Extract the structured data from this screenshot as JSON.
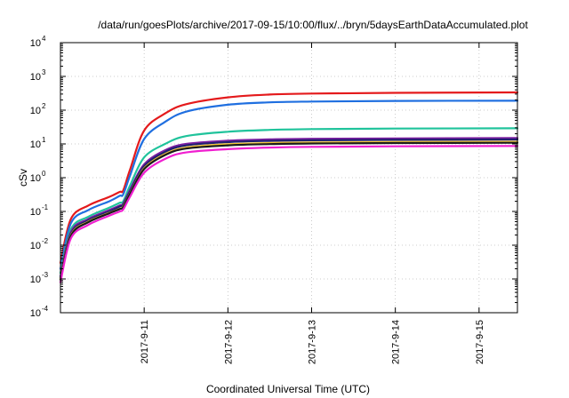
{
  "chart_data": {
    "type": "line",
    "title": "/data/run/goesPlots/archive/2017-09-15/10:00/flux/../bryn/5daysEarthDataAccumulated.plot",
    "xlabel": "Coordinated Universal Time (UTC)",
    "ylabel": "cSv",
    "yscale": "log",
    "ylim": [
      0.0001,
      10000
    ],
    "xlim": [
      "2017-09-10 00:00",
      "2017-09-15 11:00"
    ],
    "x_ticks": [
      "2017-9-11",
      "2017-9-12",
      "2017-9-13",
      "2017-9-14",
      "2017-9-15"
    ],
    "y_ticks": [
      {
        "value": 0.0001,
        "base": "10",
        "exp": "-4"
      },
      {
        "value": 0.001,
        "base": "10",
        "exp": "-3"
      },
      {
        "value": 0.01,
        "base": "10",
        "exp": "-2"
      },
      {
        "value": 0.1,
        "base": "10",
        "exp": "-1"
      },
      {
        "value": 1,
        "base": "10",
        "exp": "0"
      },
      {
        "value": 10,
        "base": "10",
        "exp": "1"
      },
      {
        "value": 100,
        "base": "10",
        "exp": "2"
      },
      {
        "value": 1000,
        "base": "10",
        "exp": "3"
      },
      {
        "value": 10000,
        "base": "10",
        "exp": "4"
      }
    ],
    "grid": true,
    "legend": "none",
    "series": [
      {
        "color": "#e41a1c",
        "x": [
          "2017-09-10 00:00",
          "2017-09-10 03:00",
          "2017-09-10 08:00",
          "2017-09-10 14:00",
          "2017-09-10 17:00",
          "2017-09-10 18:00",
          "2017-09-10 20:00",
          "2017-09-11 00:00",
          "2017-09-11 06:00",
          "2017-09-11 12:00",
          "2017-09-12 00:00",
          "2017-09-12 12:00",
          "2017-09-13 00:00",
          "2017-09-14 00:00",
          "2017-09-15 11:00"
        ],
        "values": [
          0.003,
          0.06,
          0.15,
          0.27,
          0.38,
          0.42,
          1.8,
          25,
          80,
          150,
          240,
          290,
          310,
          325,
          335
        ]
      },
      {
        "color": "#1f6fe0",
        "x": [
          "2017-09-10 00:00",
          "2017-09-10 03:00",
          "2017-09-10 08:00",
          "2017-09-10 14:00",
          "2017-09-10 17:00",
          "2017-09-10 18:00",
          "2017-09-10 20:00",
          "2017-09-11 00:00",
          "2017-09-11 06:00",
          "2017-09-11 12:00",
          "2017-09-12 00:00",
          "2017-09-12 12:00",
          "2017-09-13 00:00",
          "2017-09-14 00:00",
          "2017-09-15 11:00"
        ],
        "values": [
          0.002,
          0.045,
          0.11,
          0.2,
          0.29,
          0.32,
          1.2,
          14,
          45,
          90,
          145,
          170,
          180,
          188,
          190
        ]
      },
      {
        "color": "#1fc39b",
        "x": [
          "2017-09-10 00:00",
          "2017-09-10 03:00",
          "2017-09-10 08:00",
          "2017-09-10 14:00",
          "2017-09-10 17:00",
          "2017-09-10 18:00",
          "2017-09-10 20:00",
          "2017-09-11 00:00",
          "2017-09-11 06:00",
          "2017-09-11 12:00",
          "2017-09-12 00:00",
          "2017-09-12 12:00",
          "2017-09-13 00:00",
          "2017-09-14 00:00",
          "2017-09-15 11:00"
        ],
        "values": [
          0.0015,
          0.03,
          0.07,
          0.13,
          0.18,
          0.2,
          0.6,
          4,
          10,
          17,
          23,
          26,
          27.5,
          28.5,
          29
        ]
      },
      {
        "color": "#7b1fa2",
        "x": [
          "2017-09-10 00:00",
          "2017-09-10 03:00",
          "2017-09-10 08:00",
          "2017-09-10 14:00",
          "2017-09-10 17:00",
          "2017-09-10 18:00",
          "2017-09-10 20:00",
          "2017-09-11 00:00",
          "2017-09-11 06:00",
          "2017-09-11 12:00",
          "2017-09-12 00:00",
          "2017-09-12 12:00",
          "2017-09-13 00:00",
          "2017-09-14 00:00",
          "2017-09-15 11:00"
        ],
        "values": [
          0.0012,
          0.025,
          0.06,
          0.11,
          0.15,
          0.17,
          0.45,
          2.5,
          6.5,
          10,
          12.5,
          13.6,
          14.2,
          14.6,
          15
        ]
      },
      {
        "color": "#202070",
        "x": [
          "2017-09-10 00:00",
          "2017-09-10 03:00",
          "2017-09-10 08:00",
          "2017-09-10 14:00",
          "2017-09-10 17:00",
          "2017-09-10 18:00",
          "2017-09-10 20:00",
          "2017-09-11 00:00",
          "2017-09-11 06:00",
          "2017-09-11 12:00",
          "2017-09-12 00:00",
          "2017-09-12 12:00",
          "2017-09-13 00:00",
          "2017-09-14 00:00",
          "2017-09-15 11:00"
        ],
        "values": [
          0.0011,
          0.022,
          0.055,
          0.1,
          0.14,
          0.16,
          0.4,
          2.2,
          5.8,
          9,
          11.3,
          12.3,
          12.8,
          13.2,
          13.5
        ]
      },
      {
        "color": "#f2c230",
        "x": [
          "2017-09-10 00:00",
          "2017-09-10 03:00",
          "2017-09-10 08:00",
          "2017-09-10 14:00",
          "2017-09-10 17:00",
          "2017-09-10 18:00",
          "2017-09-10 20:00",
          "2017-09-11 00:00",
          "2017-09-11 06:00",
          "2017-09-11 12:00",
          "2017-09-12 00:00",
          "2017-09-12 12:00",
          "2017-09-13 00:00",
          "2017-09-14 00:00",
          "2017-09-15 11:00"
        ],
        "values": [
          0.001,
          0.02,
          0.05,
          0.09,
          0.12,
          0.14,
          0.35,
          1.9,
          5,
          7.8,
          9.8,
          10.6,
          11,
          11.4,
          11.6
        ]
      },
      {
        "color": "#1a1a1a",
        "x": [
          "2017-09-10 00:00",
          "2017-09-10 03:00",
          "2017-09-10 08:00",
          "2017-09-10 14:00",
          "2017-09-10 17:00",
          "2017-09-10 18:00",
          "2017-09-10 20:00",
          "2017-09-11 00:00",
          "2017-09-11 06:00",
          "2017-09-11 12:00",
          "2017-09-12 00:00",
          "2017-09-12 12:00",
          "2017-09-13 00:00",
          "2017-09-14 00:00",
          "2017-09-15 11:00"
        ],
        "values": [
          0.00095,
          0.019,
          0.048,
          0.088,
          0.118,
          0.135,
          0.34,
          1.8,
          4.7,
          7.3,
          9.1,
          9.9,
          10.3,
          10.6,
          10.8
        ]
      },
      {
        "color": "#f01fd0",
        "x": [
          "2017-09-10 00:00",
          "2017-09-10 03:00",
          "2017-09-10 08:00",
          "2017-09-10 14:00",
          "2017-09-10 17:00",
          "2017-09-10 18:00",
          "2017-09-10 20:00",
          "2017-09-11 00:00",
          "2017-09-11 06:00",
          "2017-09-11 12:00",
          "2017-09-12 00:00",
          "2017-09-12 12:00",
          "2017-09-13 00:00",
          "2017-09-14 00:00",
          "2017-09-15 11:00"
        ],
        "values": [
          0.0008,
          0.016,
          0.04,
          0.075,
          0.1,
          0.115,
          0.28,
          1.4,
          3.6,
          5.6,
          7,
          7.8,
          8.2,
          8.5,
          8.7
        ]
      }
    ]
  }
}
